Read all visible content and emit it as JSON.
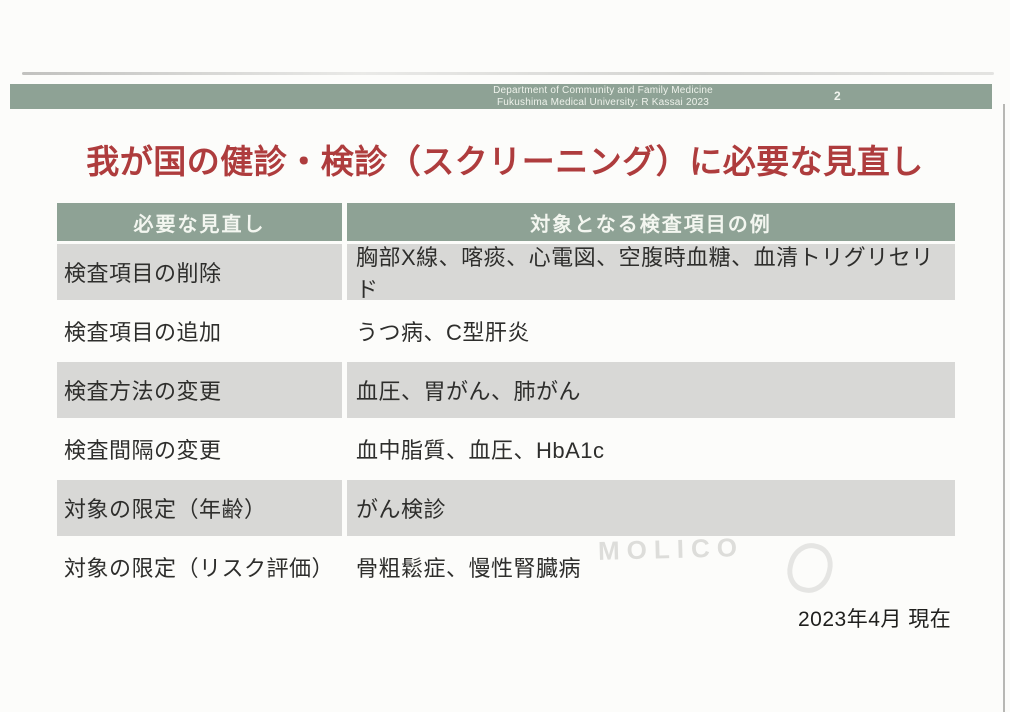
{
  "credit_bar": {
    "line1": "Department of Community and Family Medicine",
    "line2": "Fukushima Medical University: R Kassai 2023",
    "page_number": "2"
  },
  "title": "我が国の健診・検診（スクリーニング）に必要な見直し",
  "table": {
    "columns": [
      "必要な見直し",
      "対象となる検査項目の例"
    ],
    "rows": [
      {
        "label": "検査項目の削除",
        "examples": "胸部X線、喀痰、心電図、空腹時血糖、血清トリグリセリド"
      },
      {
        "label": "検査項目の追加",
        "examples": "うつ病、C型肝炎"
      },
      {
        "label": "検査方法の変更",
        "examples": "血圧、胃がん、肺がん"
      },
      {
        "label": "検査間隔の変更",
        "examples": "血中脂質、血圧、HbA1c"
      },
      {
        "label": "対象の限定（年齢）",
        "examples": "がん検診"
      },
      {
        "label": "対象の限定（リスク評価）",
        "examples": "骨粗鬆症、慢性腎臓病"
      }
    ]
  },
  "footer": {
    "date_note": "2023年4月 現在"
  },
  "scan": {
    "watermark": "MOLICO"
  },
  "colors": {
    "accent_green": "#8ea295",
    "row_gray": "#d8d8d6",
    "title_red": "#ae3c3d",
    "text_dark": "#2e2e2c"
  }
}
